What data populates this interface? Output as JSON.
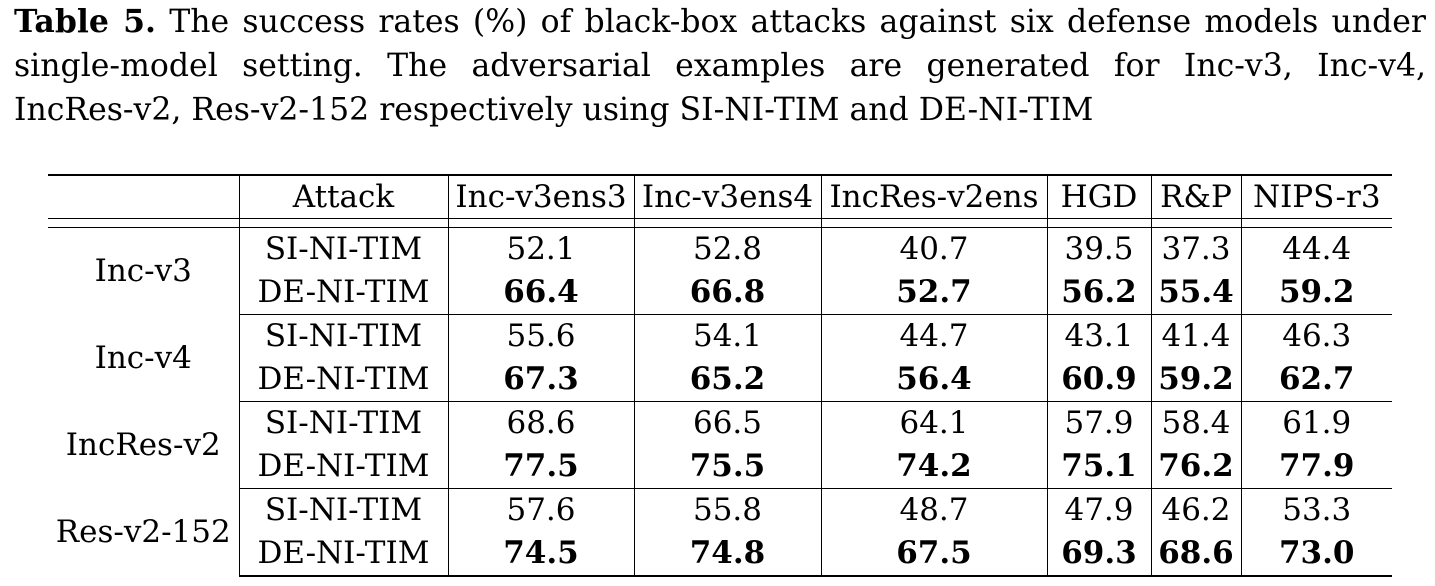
{
  "caption": {
    "label": "Table 5.",
    "text": " The success rates (%) of black-box attacks against six defense models under single-model setting. The adversarial examples are generated for Inc-v3, Inc-v4, IncRes-v2, Res-v2-152 respectively using SI-NI-TIM and DE-NI-TIM"
  },
  "table": {
    "header": {
      "model": "",
      "attack": "Attack",
      "defenses": [
        "Inc-v3ens3",
        "Inc-v3ens4",
        "IncRes-v2ens",
        "HGD",
        "R&P",
        "NIPS-r3"
      ]
    },
    "groups": [
      {
        "model": "Inc-v3",
        "rows": [
          {
            "attack": "SI-NI-TIM",
            "values": [
              "52.1",
              "52.8",
              "40.7",
              "39.5",
              "37.3",
              "44.4"
            ]
          },
          {
            "attack": "DE-NI-TIM",
            "values": [
              "66.4",
              "66.8",
              "52.7",
              "56.2",
              "55.4",
              "59.2"
            ]
          }
        ]
      },
      {
        "model": "Inc-v4",
        "rows": [
          {
            "attack": "SI-NI-TIM",
            "values": [
              "55.6",
              "54.1",
              "44.7",
              "43.1",
              "41.4",
              "46.3"
            ]
          },
          {
            "attack": "DE-NI-TIM",
            "values": [
              "67.3",
              "65.2",
              "56.4",
              "60.9",
              "59.2",
              "62.7"
            ]
          }
        ]
      },
      {
        "model": "IncRes-v2",
        "rows": [
          {
            "attack": "SI-NI-TIM",
            "values": [
              "68.6",
              "66.5",
              "64.1",
              "57.9",
              "58.4",
              "61.9"
            ]
          },
          {
            "attack": "DE-NI-TIM",
            "values": [
              "77.5",
              "75.5",
              "74.2",
              "75.1",
              "76.2",
              "77.9"
            ]
          }
        ]
      },
      {
        "model": "Res-v2-152",
        "rows": [
          {
            "attack": "SI-NI-TIM",
            "values": [
              "57.6",
              "55.8",
              "48.7",
              "47.9",
              "46.2",
              "53.3"
            ]
          },
          {
            "attack": "DE-NI-TIM",
            "values": [
              "74.5",
              "74.8",
              "67.5",
              "69.3",
              "68.6",
              "73.0"
            ]
          }
        ]
      }
    ]
  }
}
